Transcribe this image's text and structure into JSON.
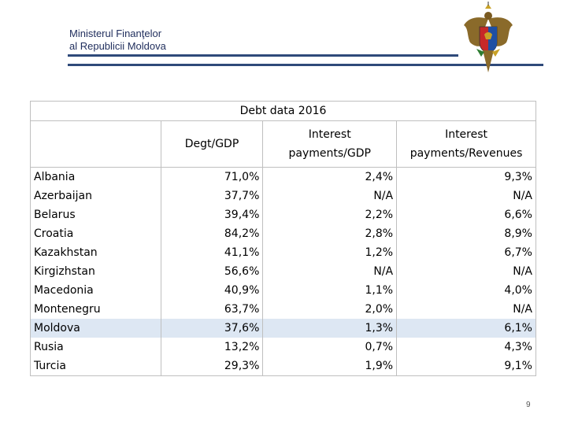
{
  "header": {
    "line1": "Ministerul Finanţelor",
    "line2": "al Republicii Moldova"
  },
  "table": {
    "title": "Debt data 2016",
    "columns": [
      "",
      "Degt/GDP",
      "Interest payments/GDP",
      "Interest payments/Revenues"
    ],
    "column_lines": [
      [
        ""
      ],
      [
        "Degt/GDP"
      ],
      [
        "Interest",
        "payments/GDP"
      ],
      [
        "Interest",
        "payments/Revenues"
      ]
    ],
    "rows": [
      {
        "country": "Albania",
        "debt_gdp": "71,0%",
        "interest_gdp": "2,4%",
        "interest_revenues": "9,3%"
      },
      {
        "country": "Azerbaijan",
        "debt_gdp": "37,7%",
        "interest_gdp": "N/A",
        "interest_revenues": "N/A"
      },
      {
        "country": "Belarus",
        "debt_gdp": "39,4%",
        "interest_gdp": "2,2%",
        "interest_revenues": "6,6%"
      },
      {
        "country": "Croatia",
        "debt_gdp": "84,2%",
        "interest_gdp": "2,8%",
        "interest_revenues": "8,9%"
      },
      {
        "country": "Kazakhstan",
        "debt_gdp": "41,1%",
        "interest_gdp": "1,2%",
        "interest_revenues": "6,7%"
      },
      {
        "country": "Kirgizhstan",
        "debt_gdp": "56,6%",
        "interest_gdp": "N/A",
        "interest_revenues": "N/A"
      },
      {
        "country": "Macedonia",
        "debt_gdp": "40,9%",
        "interest_gdp": "1,1%",
        "interest_revenues": "4,0%"
      },
      {
        "country": "Montenegru",
        "debt_gdp": "63,7%",
        "interest_gdp": "2,0%",
        "interest_revenues": "N/A"
      },
      {
        "country": "Moldova",
        "debt_gdp": "37,6%",
        "interest_gdp": "1,3%",
        "interest_revenues": "6,1%",
        "highlighted": true
      },
      {
        "country": "Rusia",
        "debt_gdp": "13,2%",
        "interest_gdp": "0,7%",
        "interest_revenues": "4,3%"
      },
      {
        "country": "Turcia",
        "debt_gdp": "29,3%",
        "interest_gdp": "1,9%",
        "interest_revenues": "9,1%"
      }
    ],
    "highlight_color": "#dde7f3"
  },
  "emblem": {
    "icon": "moldova-coat-of-arms-icon"
  },
  "page_number": "9"
}
